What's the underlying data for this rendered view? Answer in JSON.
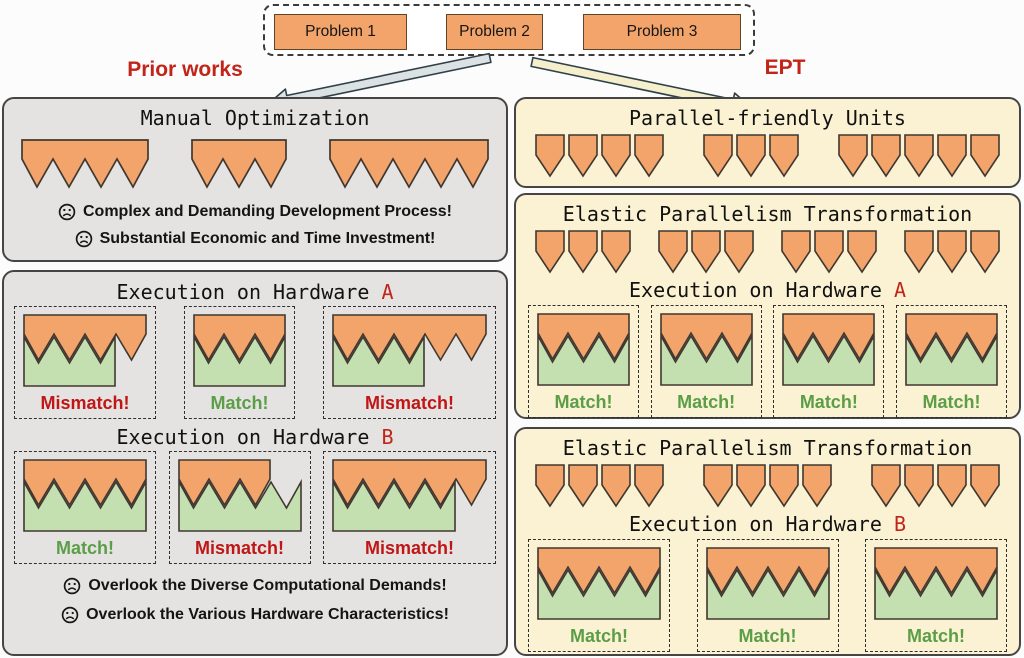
{
  "colors": {
    "orange": "#F2A46B",
    "shape_stroke": "#403830",
    "green": "#C5E0B0",
    "left_panel_bg": "#E4E3E2",
    "right_panel_bg": "#FAF2D2",
    "panel_border": "#454545",
    "accent_red": "#C22418",
    "match_green": "#5B9E47",
    "mismatch_red": "#C01616",
    "box_dash": "#2F2F2F",
    "problem_border": "#5E4526",
    "arrow_gray_fill": "#DCE1E4",
    "arrow_yellow_fill": "#F6EFCC",
    "arrow_stroke": "#2E4049"
  },
  "problems": {
    "items": [
      "Problem 1",
      "Problem 2",
      "Problem 3"
    ],
    "teeth": [
      4,
      3,
      5
    ]
  },
  "branches": {
    "left_label": "Prior works",
    "right_label": "EPT"
  },
  "icons": {
    "bullet_icon": "sad-face"
  },
  "left": {
    "panel1": {
      "title": "Manual Optimization",
      "combs": [
        4,
        3,
        5
      ],
      "bullets": [
        "Complex and Demanding Development Process!",
        "Substantial Economic and Time Investment!"
      ]
    },
    "panel2": {
      "sections": [
        {
          "prefix": "Execution on Hardware",
          "hw": "A",
          "cases": [
            {
              "orange": 4,
              "green": 3,
              "label": "Mismatch!",
              "ok": false
            },
            {
              "orange": 3,
              "green": 3,
              "label": "Match!",
              "ok": true
            },
            {
              "orange": 5,
              "green": 3,
              "label": "Mismatch!",
              "ok": false
            }
          ]
        },
        {
          "prefix": "Execution on Hardware",
          "hw": "B",
          "cases": [
            {
              "orange": 4,
              "green": 4,
              "label": "Match!",
              "ok": true
            },
            {
              "orange": 3,
              "green": 4,
              "label": "Mismatch!",
              "ok": false
            },
            {
              "orange": 5,
              "green": 4,
              "label": "Mismatch!",
              "ok": false
            }
          ]
        }
      ],
      "bullets": [
        "Overlook the Diverse Computational Demands!",
        "Overlook the Various Hardware Characteristics!"
      ]
    }
  },
  "right": {
    "panel1": {
      "title": "Parallel-friendly Units",
      "groups": [
        4,
        3,
        5
      ]
    },
    "panel2": {
      "title": "Elastic Parallelism Transformation",
      "groups": [
        3,
        3,
        3,
        3
      ],
      "exec": {
        "prefix": "Execution on Hardware",
        "hw": "A"
      },
      "cases": [
        {
          "orange": 3,
          "green": 3,
          "label": "Match!",
          "ok": true
        },
        {
          "orange": 3,
          "green": 3,
          "label": "Match!",
          "ok": true
        },
        {
          "orange": 3,
          "green": 3,
          "label": "Match!",
          "ok": true
        },
        {
          "orange": 3,
          "green": 3,
          "label": "Match!",
          "ok": true
        }
      ]
    },
    "panel3": {
      "title": "Elastic Parallelism Transformation",
      "groups": [
        4,
        4,
        4
      ],
      "exec": {
        "prefix": "Execution on Hardware",
        "hw": "B"
      },
      "cases": [
        {
          "orange": 4,
          "green": 4,
          "label": "Match!",
          "ok": true
        },
        {
          "orange": 4,
          "green": 4,
          "label": "Match!",
          "ok": true
        },
        {
          "orange": 4,
          "green": 4,
          "label": "Match!",
          "ok": true
        }
      ]
    }
  }
}
